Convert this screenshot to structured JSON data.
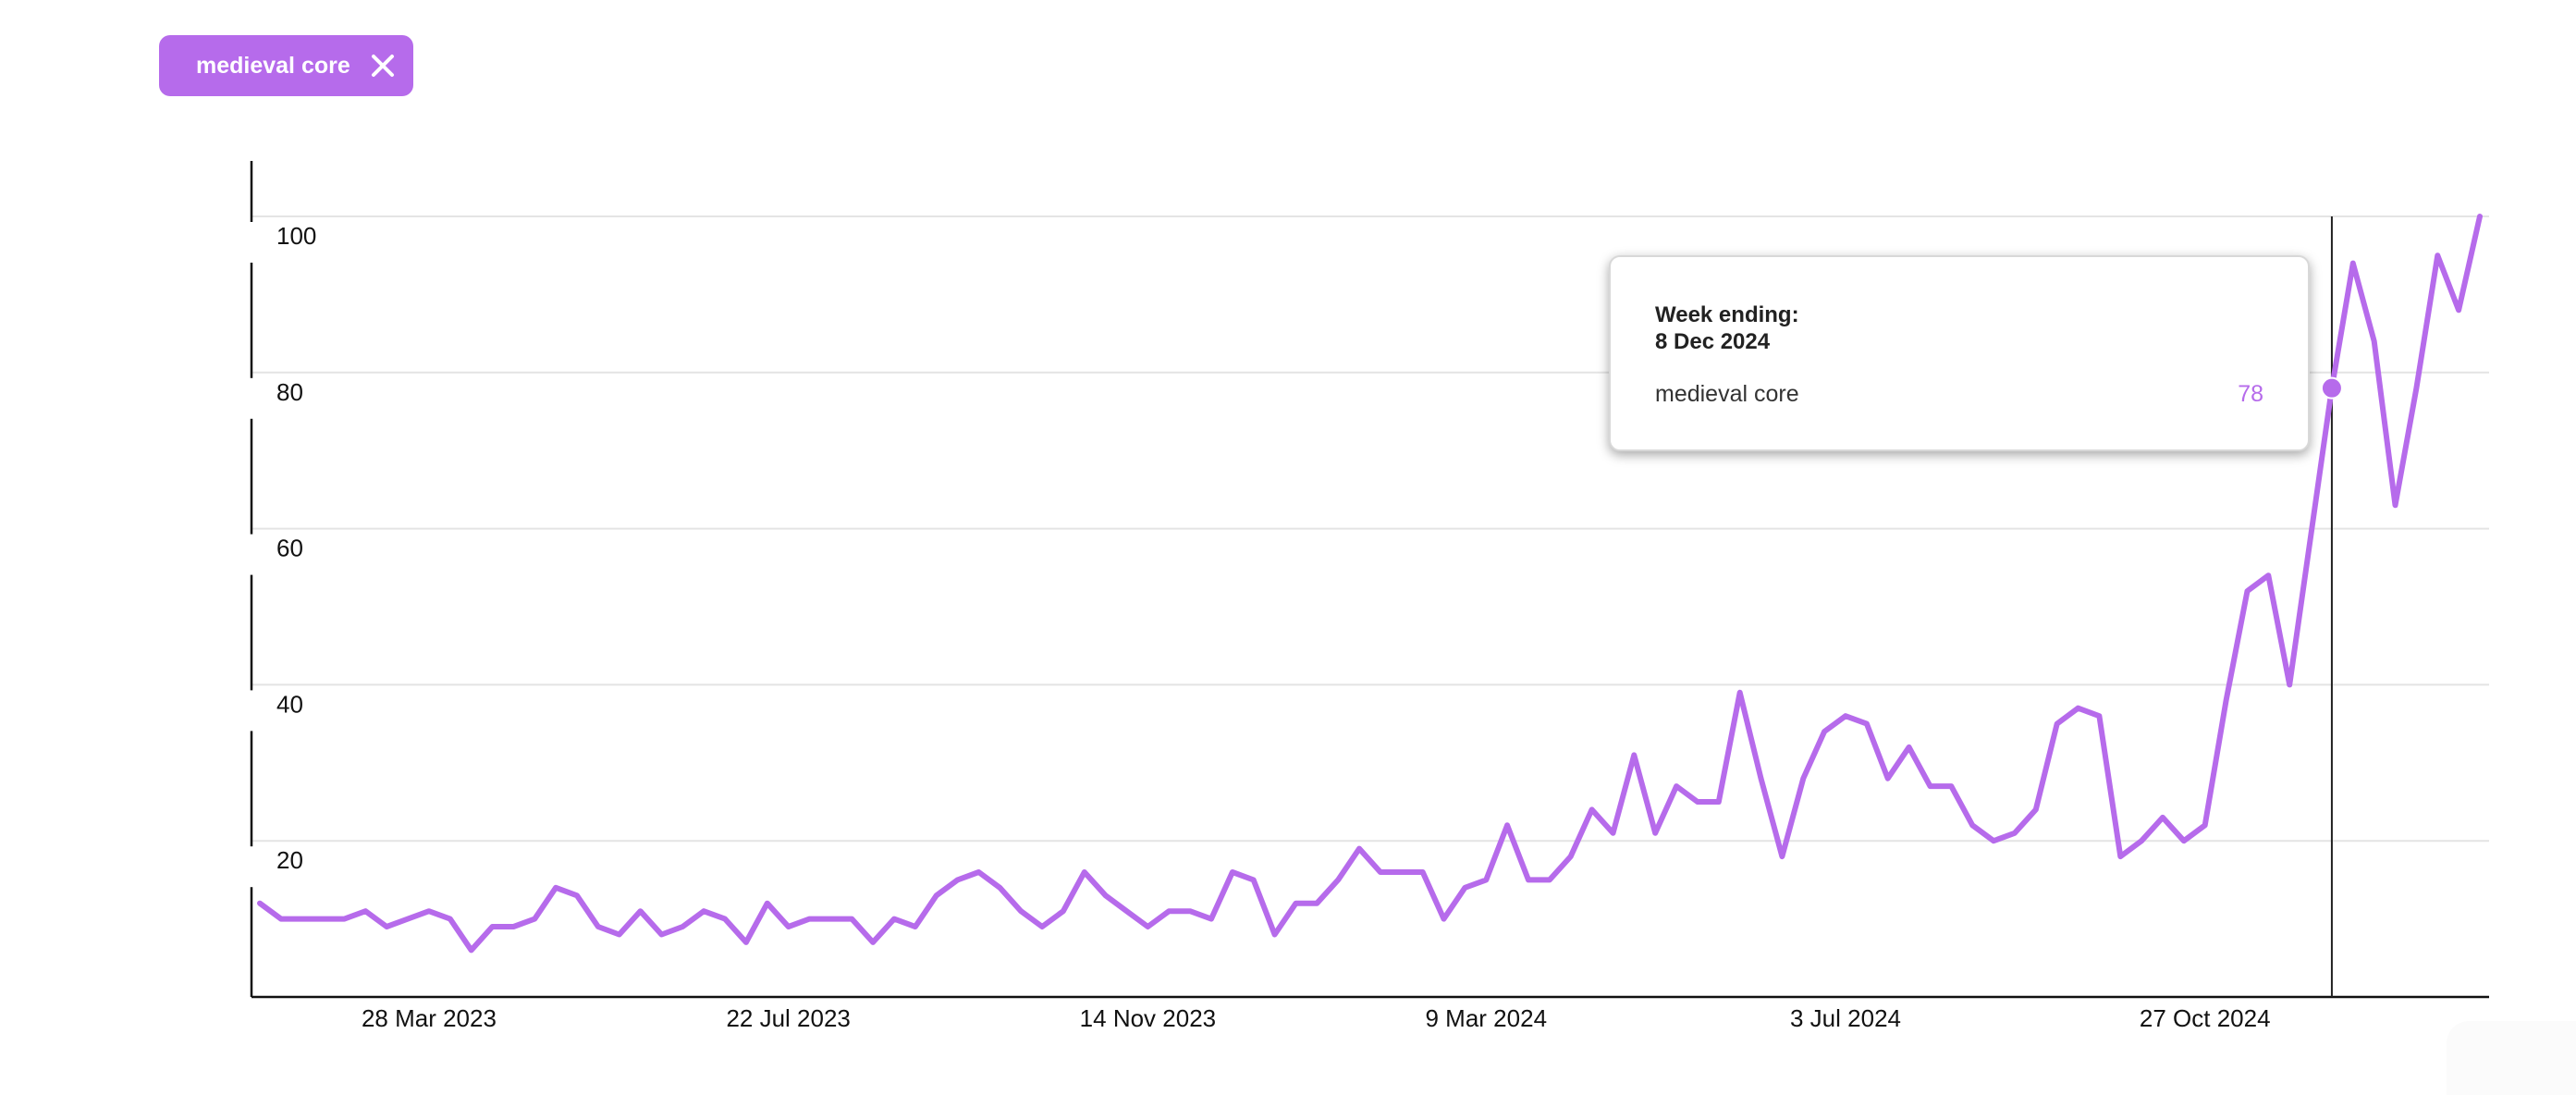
{
  "filter_chip": {
    "label": "medieval core",
    "close_icon": "close-icon"
  },
  "colors": {
    "accent": "#B66BEB",
    "grid": "#e4e4e4",
    "axis": "#111111",
    "crosshair": "#222222"
  },
  "tooltip": {
    "heading": "Week ending:",
    "date": "8 Dec 2024",
    "series_label": "medieval core",
    "value": "78"
  },
  "chart_data": {
    "type": "line",
    "title": "",
    "xlabel": "",
    "ylabel": "",
    "ylim": [
      0,
      100
    ],
    "grid": true,
    "y_ticks": [
      "20",
      "40",
      "60",
      "80",
      "100"
    ],
    "x_ticks": [
      {
        "label": "28 Mar 2023",
        "index": 8
      },
      {
        "label": "22 Jul 2023",
        "index": 25
      },
      {
        "label": "14 Nov 2023",
        "index": 42
      },
      {
        "label": "9 Mar 2024",
        "index": 58
      },
      {
        "label": "3 Jul 2024",
        "index": 75
      },
      {
        "label": "27 Oct 2024",
        "index": 92
      }
    ],
    "highlight_index": 98,
    "series": [
      {
        "name": "medieval core",
        "values": [
          12,
          10,
          10,
          10,
          10,
          11,
          9,
          10,
          11,
          10,
          6,
          9,
          9,
          10,
          14,
          13,
          9,
          8,
          11,
          8,
          9,
          11,
          10,
          7,
          12,
          9,
          10,
          10,
          10,
          7,
          10,
          9,
          13,
          15,
          16,
          14,
          11,
          9,
          11,
          16,
          13,
          11,
          9,
          11,
          11,
          10,
          16,
          15,
          8,
          12,
          12,
          15,
          19,
          16,
          16,
          16,
          10,
          14,
          15,
          22,
          15,
          15,
          18,
          24,
          21,
          31,
          21,
          27,
          25,
          25,
          39,
          28,
          18,
          28,
          34,
          36,
          35,
          28,
          32,
          27,
          27,
          22,
          20,
          21,
          24,
          35,
          37,
          36,
          18,
          20,
          23,
          20,
          22,
          38,
          52,
          54,
          40,
          59,
          78,
          94,
          84,
          63,
          78,
          95,
          88,
          100
        ]
      }
    ]
  }
}
